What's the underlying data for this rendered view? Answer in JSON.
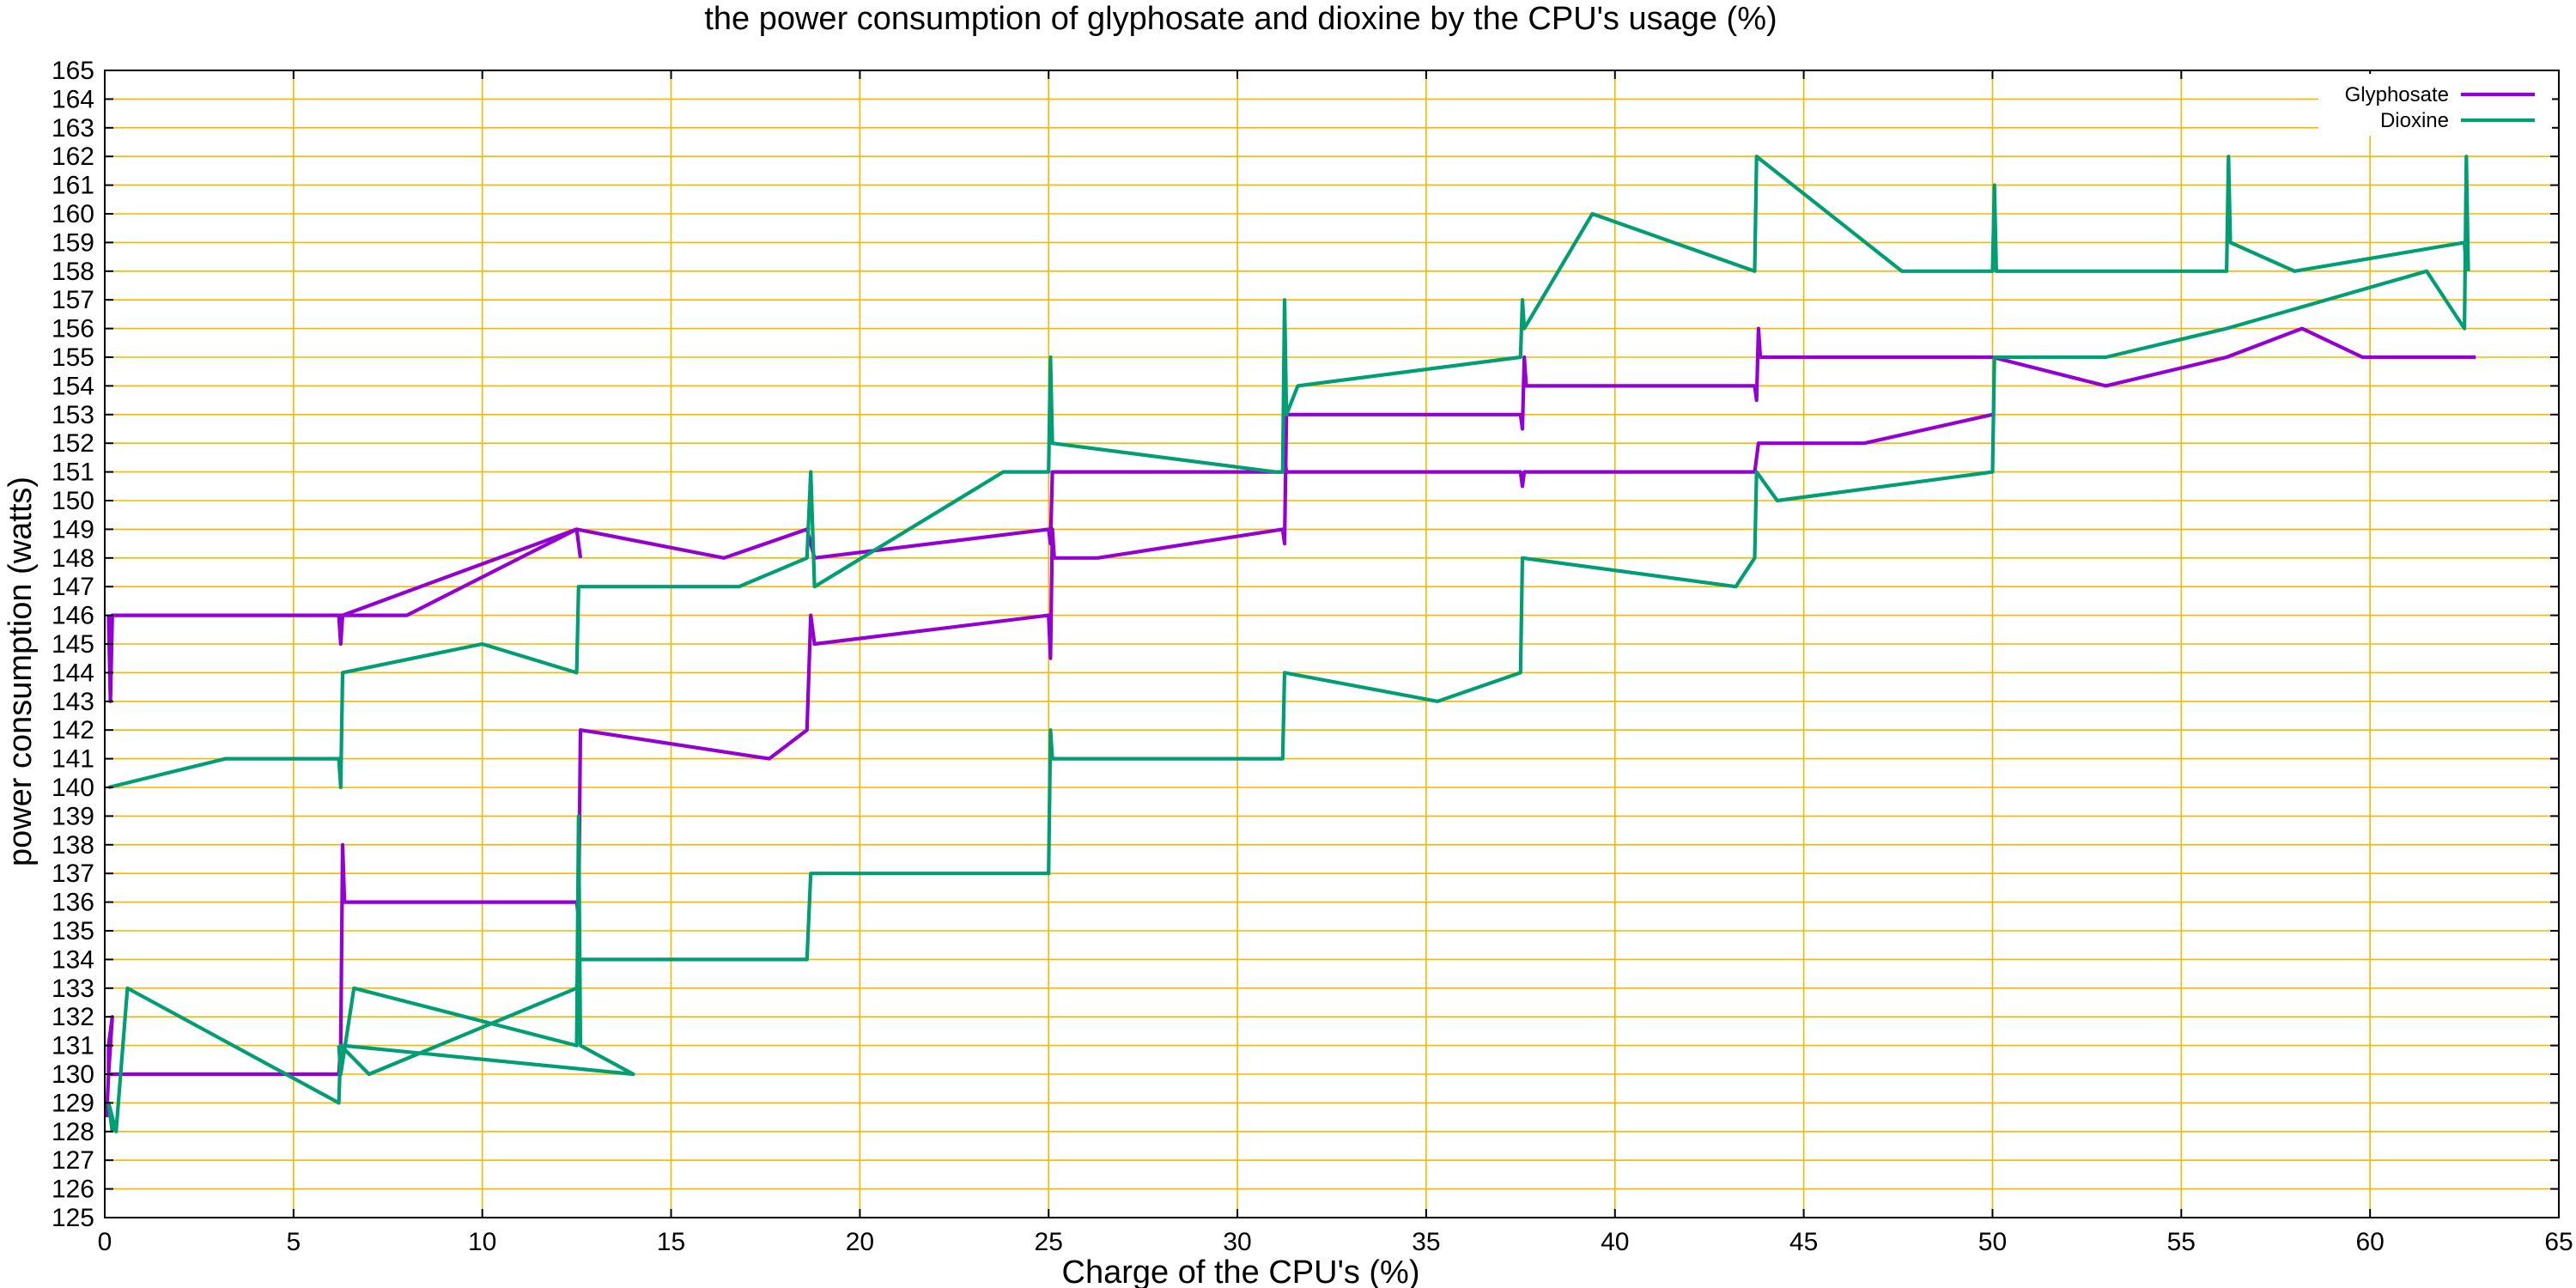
{
  "chart_data": {
    "type": "line",
    "title": "the power consumption of glyphosate and dioxine by the CPU's usage (%)",
    "xlabel": "Charge of the CPU's (%)",
    "ylabel": "power consumption (watts)",
    "xlim": [
      0,
      65
    ],
    "ylim": [
      125,
      165
    ],
    "xticks": [
      0,
      5,
      10,
      15,
      20,
      25,
      30,
      35,
      40,
      45,
      50,
      55,
      60,
      65
    ],
    "yticks": [
      125,
      126,
      127,
      128,
      129,
      130,
      131,
      132,
      133,
      134,
      135,
      136,
      137,
      138,
      139,
      140,
      141,
      142,
      143,
      144,
      145,
      146,
      147,
      148,
      149,
      150,
      151,
      152,
      153,
      154,
      155,
      156,
      157,
      158,
      159,
      160,
      161,
      162,
      163,
      164,
      165
    ],
    "grid": true,
    "legend_position": "top-right",
    "series": [
      {
        "name": "Glyphosate",
        "color": "#9400d3",
        "points": [
          [
            0.05,
            128.5
          ],
          [
            0.1,
            130
          ],
          [
            0.2,
            132
          ],
          [
            0.1,
            131
          ],
          [
            0.1,
            130
          ],
          [
            6.2,
            130
          ],
          [
            6.25,
            131
          ],
          [
            6.3,
            138
          ],
          [
            6.35,
            136
          ],
          [
            12.5,
            136
          ],
          [
            12.55,
            135.5
          ],
          [
            12.6,
            142
          ],
          [
            17.6,
            141
          ],
          [
            18.6,
            142
          ],
          [
            18.7,
            146
          ],
          [
            18.8,
            145
          ],
          [
            25.0,
            146
          ],
          [
            25.05,
            144.5
          ],
          [
            25.1,
            149
          ],
          [
            25.15,
            148
          ],
          [
            26.3,
            148
          ],
          [
            31.2,
            149
          ],
          [
            31.25,
            148.5
          ],
          [
            31.3,
            153
          ],
          [
            37.5,
            153
          ],
          [
            37.55,
            152.5
          ],
          [
            37.6,
            155
          ],
          [
            37.65,
            154
          ],
          [
            43.7,
            154
          ],
          [
            43.75,
            153.5
          ],
          [
            43.8,
            156
          ],
          [
            43.85,
            155
          ],
          [
            50.0,
            155
          ],
          [
            53.0,
            154
          ],
          [
            56.2,
            155
          ],
          [
            58.2,
            156
          ],
          [
            59.8,
            155
          ],
          [
            62.5,
            155
          ],
          [
            62.8,
            155
          ],
          null,
          [
            0.1,
            146
          ],
          [
            0.15,
            143
          ],
          [
            0.2,
            146
          ],
          [
            8.0,
            146
          ],
          [
            12.5,
            149
          ],
          [
            16.4,
            148
          ],
          [
            18.6,
            149
          ],
          [
            18.7,
            148.5
          ],
          [
            18.8,
            148
          ],
          [
            25.0,
            149
          ],
          [
            25.05,
            148.5
          ],
          [
            25.1,
            151
          ],
          [
            31.2,
            151
          ],
          [
            31.25,
            151.5
          ],
          [
            31.3,
            151
          ],
          [
            37.5,
            151
          ],
          [
            37.55,
            150.5
          ],
          [
            37.6,
            151
          ],
          [
            43.7,
            151
          ],
          [
            43.75,
            151.5
          ],
          [
            43.8,
            152
          ],
          [
            46.6,
            152
          ],
          [
            50.0,
            153
          ],
          null,
          [
            0.1,
            146
          ],
          [
            0.15,
            144
          ],
          [
            0.2,
            146
          ],
          [
            6.2,
            146
          ],
          [
            6.25,
            145
          ],
          [
            6.3,
            146
          ],
          [
            12.5,
            149
          ],
          [
            12.55,
            148.5
          ],
          [
            12.6,
            148
          ]
        ]
      },
      {
        "name": "Dioxine",
        "color": "#009e73",
        "points": [
          [
            0.2,
            128
          ],
          [
            0.1,
            129
          ],
          [
            0.3,
            128
          ],
          [
            0.6,
            133
          ],
          [
            6.2,
            129
          ],
          [
            6.25,
            131
          ],
          [
            7.0,
            130
          ],
          [
            12.5,
            133
          ],
          [
            12.55,
            134
          ],
          [
            18.6,
            134
          ],
          [
            18.7,
            137
          ],
          [
            25.0,
            137
          ],
          [
            25.05,
            142
          ],
          [
            25.1,
            141
          ],
          [
            31.2,
            141
          ],
          [
            31.25,
            144
          ],
          [
            35.3,
            143
          ],
          [
            37.5,
            144
          ],
          [
            37.55,
            148
          ],
          [
            43.2,
            147
          ],
          [
            43.7,
            148
          ],
          [
            43.75,
            151
          ],
          [
            44.3,
            150
          ],
          [
            50.0,
            151
          ],
          [
            50.05,
            155
          ],
          [
            53.0,
            155
          ],
          [
            56.2,
            156
          ],
          [
            61.5,
            158
          ],
          [
            62.5,
            156
          ],
          [
            62.55,
            162
          ],
          [
            62.6,
            158
          ],
          null,
          [
            0.1,
            140
          ],
          [
            3.2,
            141
          ],
          [
            6.2,
            141
          ],
          [
            6.25,
            140
          ],
          [
            6.3,
            144
          ],
          [
            10.0,
            145
          ],
          [
            12.5,
            144
          ],
          [
            12.55,
            147
          ],
          [
            16.8,
            147
          ],
          [
            18.6,
            148
          ],
          [
            18.7,
            151
          ],
          [
            18.8,
            147
          ],
          [
            23.8,
            151
          ],
          [
            25.0,
            151
          ],
          [
            25.05,
            155
          ],
          [
            25.1,
            152
          ],
          [
            31.0,
            151
          ],
          [
            31.2,
            151
          ],
          [
            31.25,
            157
          ],
          [
            31.3,
            153
          ],
          [
            31.6,
            154
          ],
          [
            37.5,
            155
          ],
          [
            37.55,
            157
          ],
          [
            37.6,
            156
          ],
          [
            39.4,
            160
          ],
          [
            43.7,
            158
          ],
          [
            43.75,
            162
          ],
          [
            47.6,
            158
          ],
          [
            50.0,
            158
          ],
          [
            50.05,
            161
          ],
          [
            50.1,
            158
          ],
          [
            56.2,
            158
          ],
          [
            56.25,
            162
          ],
          [
            56.3,
            159
          ],
          [
            58.0,
            158
          ],
          [
            62.5,
            159
          ],
          [
            62.55,
            158
          ],
          null,
          [
            6.2,
            131
          ],
          [
            6.25,
            130
          ],
          [
            6.6,
            133
          ],
          [
            12.5,
            131
          ],
          [
            12.55,
            139
          ],
          [
            12.6,
            131
          ],
          [
            14.0,
            130
          ],
          [
            6.3,
            131
          ]
        ]
      }
    ]
  }
}
